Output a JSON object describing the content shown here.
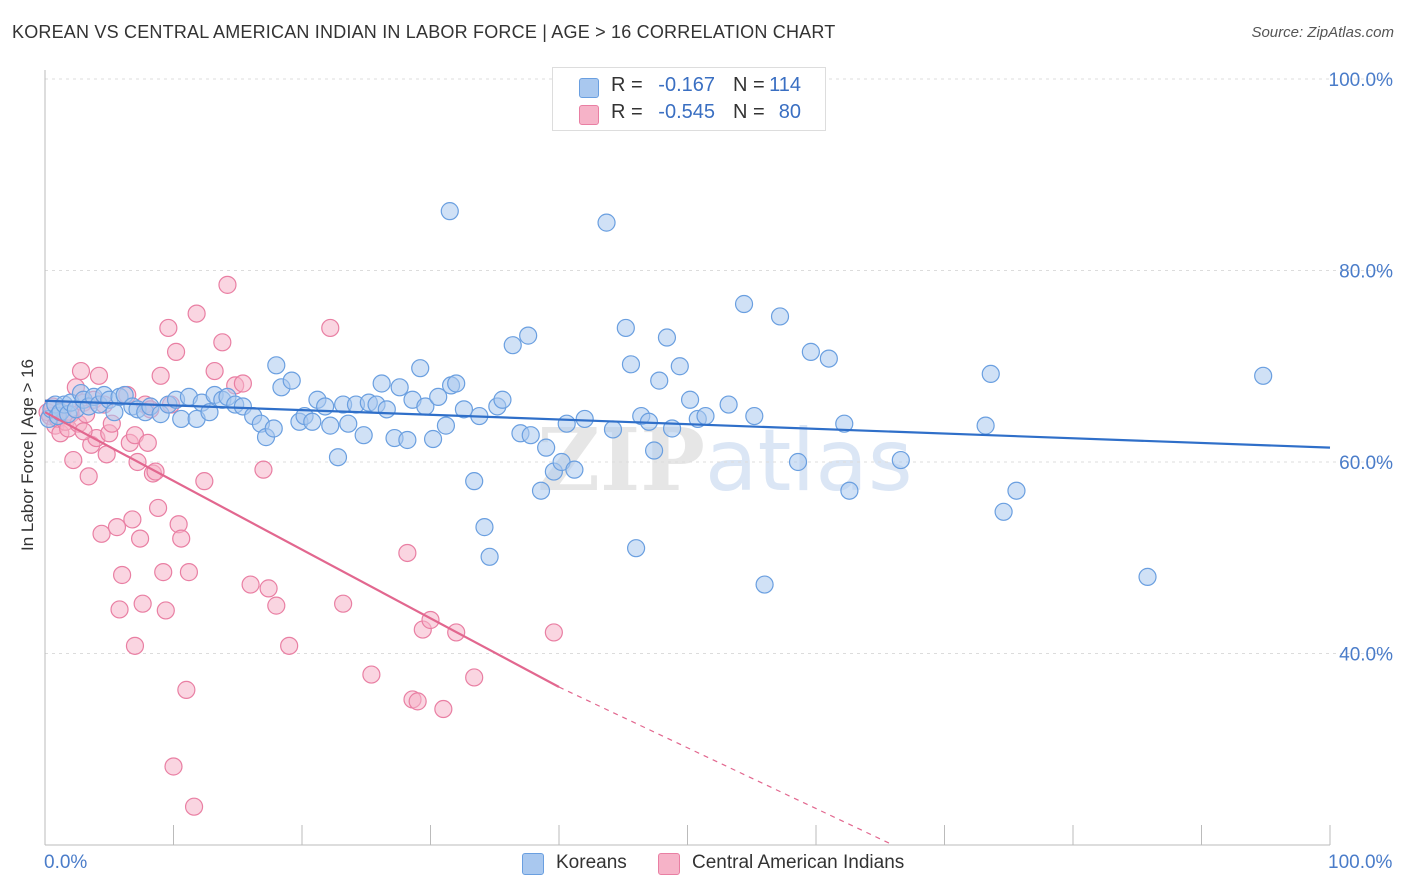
{
  "title": "KOREAN VS CENTRAL AMERICAN INDIAN IN LABOR FORCE | AGE > 16 CORRELATION CHART",
  "source": "Source: ZipAtlas.com",
  "watermark": "ZIPatlas",
  "legend_stats": [
    {
      "r_label": "R =",
      "r_value": "-0.167",
      "n_label": "N =",
      "n_value": "114",
      "color": "#a9c8ef"
    },
    {
      "r_label": "R =",
      "r_value": "-0.545",
      "n_label": "N =",
      "n_value": "80",
      "color": "#f6b3c8"
    }
  ],
  "chart_data": {
    "type": "scatter",
    "title": "KOREAN VS CENTRAL AMERICAN INDIAN IN LABOR FORCE | AGE > 16 CORRELATION CHART",
    "xlabel": "",
    "ylabel": "In Labor Force | Age > 16",
    "xlim": [
      0,
      100
    ],
    "ylim": [
      20,
      100
    ],
    "x_tick_labels": [
      "0.0%",
      "100.0%"
    ],
    "y_ticks": [
      40,
      60,
      80,
      100
    ],
    "y_tick_labels": [
      "40.0%",
      "60.0%",
      "80.0%",
      "100.0%"
    ],
    "grid": true,
    "legend_position": "bottom",
    "series": [
      {
        "name": "Koreans",
        "color": "#6a9fe0",
        "fill": "#a9c8ef",
        "points": [
          [
            0.3,
            64.5
          ],
          [
            0.5,
            65.5
          ],
          [
            0.8,
            66.0
          ],
          [
            1.0,
            64.8
          ],
          [
            1.2,
            65.2
          ],
          [
            1.5,
            66.0
          ],
          [
            1.8,
            65.0
          ],
          [
            2.0,
            66.2
          ],
          [
            2.4,
            65.5
          ],
          [
            2.8,
            67.2
          ],
          [
            3.0,
            66.5
          ],
          [
            3.4,
            65.8
          ],
          [
            3.8,
            66.8
          ],
          [
            4.2,
            66.0
          ],
          [
            4.6,
            67.0
          ],
          [
            5.0,
            66.5
          ],
          [
            5.4,
            65.2
          ],
          [
            5.8,
            66.8
          ],
          [
            6.2,
            67.0
          ],
          [
            6.8,
            65.8
          ],
          [
            7.2,
            65.5
          ],
          [
            7.8,
            65.2
          ],
          [
            8.2,
            65.8
          ],
          [
            9.0,
            65.0
          ],
          [
            9.6,
            66.0
          ],
          [
            10.2,
            66.5
          ],
          [
            10.6,
            64.5
          ],
          [
            11.2,
            66.8
          ],
          [
            11.8,
            64.5
          ],
          [
            12.2,
            66.2
          ],
          [
            12.8,
            65.2
          ],
          [
            13.2,
            67.0
          ],
          [
            13.8,
            66.5
          ],
          [
            14.2,
            66.8
          ],
          [
            14.8,
            66.0
          ],
          [
            15.4,
            65.8
          ],
          [
            16.2,
            64.8
          ],
          [
            16.8,
            64.0
          ],
          [
            17.2,
            62.6
          ],
          [
            17.8,
            63.5
          ],
          [
            18.0,
            70.1
          ],
          [
            18.4,
            67.8
          ],
          [
            19.2,
            68.5
          ],
          [
            19.8,
            64.2
          ],
          [
            20.2,
            64.8
          ],
          [
            20.8,
            64.2
          ],
          [
            21.2,
            66.5
          ],
          [
            21.8,
            65.8
          ],
          [
            22.2,
            63.8
          ],
          [
            22.8,
            60.5
          ],
          [
            23.2,
            66.0
          ],
          [
            23.6,
            64.0
          ],
          [
            24.2,
            66.0
          ],
          [
            24.8,
            62.8
          ],
          [
            25.2,
            66.2
          ],
          [
            25.8,
            66.0
          ],
          [
            26.2,
            68.2
          ],
          [
            26.6,
            65.5
          ],
          [
            27.2,
            62.5
          ],
          [
            27.6,
            67.8
          ],
          [
            28.2,
            62.3
          ],
          [
            28.6,
            66.5
          ],
          [
            29.2,
            69.8
          ],
          [
            29.6,
            65.8
          ],
          [
            30.2,
            62.4
          ],
          [
            30.6,
            66.8
          ],
          [
            31.2,
            63.8
          ],
          [
            31.6,
            68.0
          ],
          [
            32.0,
            68.2
          ],
          [
            32.6,
            65.5
          ],
          [
            33.4,
            58.0
          ],
          [
            33.8,
            64.8
          ],
          [
            34.2,
            53.2
          ],
          [
            34.6,
            50.1
          ],
          [
            35.2,
            65.8
          ],
          [
            35.6,
            66.5
          ],
          [
            36.4,
            72.2
          ],
          [
            37.0,
            63.0
          ],
          [
            37.6,
            73.2
          ],
          [
            37.8,
            62.8
          ],
          [
            38.6,
            57.0
          ],
          [
            39.0,
            61.5
          ],
          [
            39.6,
            59.0
          ],
          [
            40.2,
            60.0
          ],
          [
            40.6,
            64.0
          ],
          [
            41.2,
            59.2
          ],
          [
            42.0,
            64.5
          ],
          [
            31.5,
            86.2
          ],
          [
            43.7,
            85.0
          ],
          [
            44.2,
            63.4
          ],
          [
            45.2,
            74.0
          ],
          [
            45.6,
            70.2
          ],
          [
            46.0,
            51.0
          ],
          [
            46.4,
            64.8
          ],
          [
            47.0,
            64.2
          ],
          [
            47.4,
            61.2
          ],
          [
            47.8,
            68.5
          ],
          [
            48.4,
            73.0
          ],
          [
            48.8,
            63.5
          ],
          [
            49.4,
            70.0
          ],
          [
            50.2,
            66.5
          ],
          [
            50.8,
            64.5
          ],
          [
            51.4,
            64.8
          ],
          [
            53.2,
            66.0
          ],
          [
            54.4,
            76.5
          ],
          [
            55.2,
            64.8
          ],
          [
            56.0,
            47.2
          ],
          [
            57.2,
            75.2
          ],
          [
            58.6,
            60.0
          ],
          [
            59.6,
            71.5
          ],
          [
            61.0,
            70.8
          ],
          [
            62.2,
            64.0
          ],
          [
            62.6,
            57.0
          ],
          [
            66.6,
            60.2
          ],
          [
            73.2,
            63.8
          ],
          [
            73.6,
            69.2
          ],
          [
            74.6,
            54.8
          ],
          [
            75.6,
            57.0
          ],
          [
            85.8,
            48.0
          ],
          [
            94.8,
            69.0
          ]
        ],
        "trend": [
          [
            0,
            66.4
          ],
          [
            100,
            61.5
          ]
        ]
      },
      {
        "name": "Central American Indians",
        "color": "#e97fa3",
        "fill": "#f6b3c8",
        "points": [
          [
            0.2,
            65.2
          ],
          [
            0.4,
            64.8
          ],
          [
            0.6,
            65.8
          ],
          [
            0.8,
            63.8
          ],
          [
            1.0,
            64.5
          ],
          [
            1.2,
            63.0
          ],
          [
            1.4,
            65.5
          ],
          [
            1.6,
            64.2
          ],
          [
            1.8,
            63.5
          ],
          [
            2.0,
            65.0
          ],
          [
            2.2,
            60.2
          ],
          [
            2.4,
            67.8
          ],
          [
            2.6,
            64.0
          ],
          [
            2.8,
            69.5
          ],
          [
            3.0,
            66.2
          ],
          [
            3.2,
            65.0
          ],
          [
            3.4,
            58.5
          ],
          [
            3.6,
            61.8
          ],
          [
            3.8,
            66.5
          ],
          [
            4.0,
            62.5
          ],
          [
            4.2,
            69.0
          ],
          [
            4.4,
            52.5
          ],
          [
            4.6,
            66.0
          ],
          [
            4.8,
            60.8
          ],
          [
            5.0,
            63.0
          ],
          [
            5.2,
            64.0
          ],
          [
            5.6,
            53.2
          ],
          [
            5.8,
            44.6
          ],
          [
            6.0,
            48.2
          ],
          [
            6.4,
            67.0
          ],
          [
            6.6,
            62.0
          ],
          [
            6.8,
            54.0
          ],
          [
            7.0,
            62.8
          ],
          [
            7.2,
            60.0
          ],
          [
            7.4,
            52.0
          ],
          [
            7.6,
            45.2
          ],
          [
            7.8,
            66.0
          ],
          [
            8.0,
            62.0
          ],
          [
            8.2,
            65.5
          ],
          [
            8.4,
            58.8
          ],
          [
            8.6,
            59.0
          ],
          [
            8.8,
            55.2
          ],
          [
            9.0,
            69.0
          ],
          [
            9.2,
            48.5
          ],
          [
            9.4,
            44.5
          ],
          [
            9.6,
            74.0
          ],
          [
            9.8,
            66.0
          ],
          [
            10.0,
            28.2
          ],
          [
            10.2,
            71.5
          ],
          [
            10.4,
            53.5
          ],
          [
            10.6,
            52.0
          ],
          [
            11.0,
            36.2
          ],
          [
            11.2,
            48.5
          ],
          [
            11.6,
            24.0
          ],
          [
            11.8,
            75.5
          ],
          [
            12.4,
            58.0
          ],
          [
            13.2,
            69.5
          ],
          [
            13.8,
            72.5
          ],
          [
            14.2,
            78.5
          ],
          [
            14.8,
            68.0
          ],
          [
            15.4,
            68.2
          ],
          [
            16.0,
            47.2
          ],
          [
            17.0,
            59.2
          ],
          [
            17.4,
            46.8
          ],
          [
            18.0,
            45.0
          ],
          [
            19.0,
            40.8
          ],
          [
            22.2,
            74.0
          ],
          [
            23.2,
            45.2
          ],
          [
            25.4,
            37.8
          ],
          [
            28.2,
            50.5
          ],
          [
            28.6,
            35.2
          ],
          [
            29.0,
            35.0
          ],
          [
            29.4,
            42.5
          ],
          [
            30.0,
            43.5
          ],
          [
            31.0,
            34.2
          ],
          [
            32.0,
            42.2
          ],
          [
            33.4,
            37.5
          ],
          [
            39.6,
            42.2
          ],
          [
            7.0,
            40.8
          ],
          [
            3.0,
            63.2
          ]
        ],
        "trend": [
          [
            0,
            65.2
          ],
          [
            40,
            36.5
          ]
        ],
        "trend_extension": [
          [
            40,
            36.5
          ],
          [
            66,
            20
          ]
        ]
      }
    ]
  },
  "legend": [
    {
      "label": "Koreans",
      "color": "#a9c8ef",
      "border": "#6a9fe0"
    },
    {
      "label": "Central American Indians",
      "color": "#f6b3c8",
      "border": "#e97fa3"
    }
  ]
}
